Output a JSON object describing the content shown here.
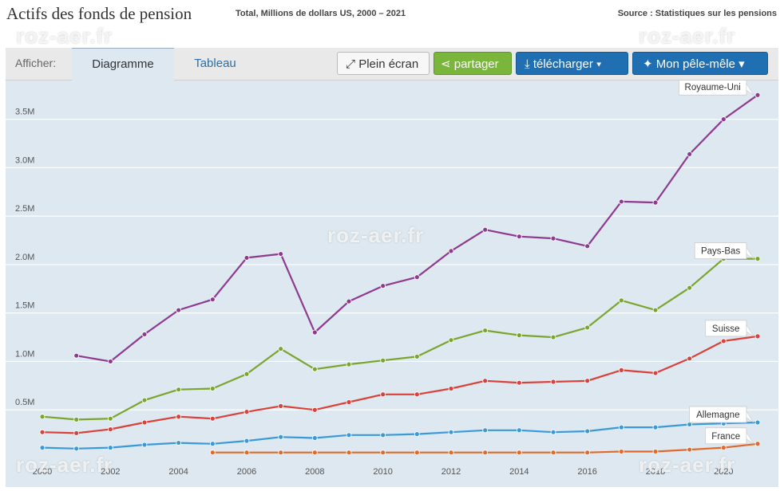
{
  "header": {
    "title": "Actifs des fonds de pension",
    "subtitle": "Total, Millions de dollars US, 2000 – 2021",
    "source": "Source : Statistiques sur les pensions"
  },
  "toolbar": {
    "show_label": "Afficher:",
    "tabs": [
      {
        "label": "Diagramme"
      },
      {
        "label": "Tableau"
      }
    ],
    "fullscreen_label": "Plein écran",
    "share_label": "partager",
    "download_label": "télécharger",
    "pin_label": "Mon pêle-mêle"
  },
  "watermarks": [
    "roz-aer.fr",
    "roz-aer.fr",
    "roz-aer.fr",
    "roz-aer.fr",
    "roz-aer.fr"
  ],
  "colors": {
    "plot_bg": "#dde8f0",
    "grid": "#ffffff",
    "royaume_uni": "#8e3a8e",
    "pays_bas": "#7aa52e",
    "suisse": "#d9413a",
    "allemagne": "#3a9ad9",
    "france": "#e06a2c"
  },
  "chart_data": {
    "type": "line",
    "title": "Actifs des fonds de pension",
    "x": [
      2000,
      2001,
      2002,
      2003,
      2004,
      2005,
      2006,
      2007,
      2008,
      2009,
      2010,
      2011,
      2012,
      2013,
      2014,
      2015,
      2016,
      2017,
      2018,
      2019,
      2020,
      2021
    ],
    "xticks": [
      "2000",
      "2002",
      "2004",
      "2006",
      "2008",
      "2010",
      "2012",
      "2014",
      "2016",
      "2018",
      "2020"
    ],
    "ylim": [
      0,
      3900000
    ],
    "yticks": [
      {
        "value": 500000,
        "label": "0.5M"
      },
      {
        "value": 1000000,
        "label": "1.0M"
      },
      {
        "value": 1500000,
        "label": "1.5M"
      },
      {
        "value": 2000000,
        "label": "2.0M"
      },
      {
        "value": 2500000,
        "label": "2.5M"
      },
      {
        "value": 3000000,
        "label": "3.0M"
      },
      {
        "value": 3500000,
        "label": "3.5M"
      }
    ],
    "grid": "horizontal",
    "series": [
      {
        "name": "Royaume-Uni",
        "key": "royaume_uni",
        "values": [
          null,
          1060000,
          1000000,
          1280000,
          1530000,
          1640000,
          2070000,
          2110000,
          1300000,
          1620000,
          1780000,
          1870000,
          2140000,
          2360000,
          2290000,
          2270000,
          2190000,
          2650000,
          2640000,
          3140000,
          3500000,
          3750000
        ]
      },
      {
        "name": "Pays-Bas",
        "key": "pays_bas",
        "values": [
          430000,
          400000,
          410000,
          600000,
          710000,
          720000,
          870000,
          1130000,
          920000,
          970000,
          1010000,
          1050000,
          1220000,
          1320000,
          1270000,
          1250000,
          1350000,
          1630000,
          1530000,
          1760000,
          2060000,
          2060000
        ]
      },
      {
        "name": "Suisse",
        "key": "suisse",
        "values": [
          270000,
          260000,
          300000,
          370000,
          430000,
          410000,
          480000,
          540000,
          500000,
          580000,
          660000,
          660000,
          720000,
          800000,
          780000,
          790000,
          800000,
          910000,
          880000,
          1030000,
          1210000,
          1260000
        ]
      },
      {
        "name": "Allemagne",
        "key": "allemagne",
        "values": [
          110000,
          100000,
          110000,
          140000,
          160000,
          150000,
          180000,
          220000,
          210000,
          240000,
          240000,
          250000,
          270000,
          290000,
          290000,
          270000,
          280000,
          320000,
          320000,
          350000,
          360000,
          370000
        ]
      },
      {
        "name": "France",
        "key": "france",
        "values": [
          null,
          null,
          null,
          null,
          null,
          60000,
          60000,
          60000,
          60000,
          60000,
          60000,
          60000,
          60000,
          60000,
          60000,
          60000,
          60000,
          70000,
          70000,
          90000,
          110000,
          150000
        ]
      }
    ]
  }
}
